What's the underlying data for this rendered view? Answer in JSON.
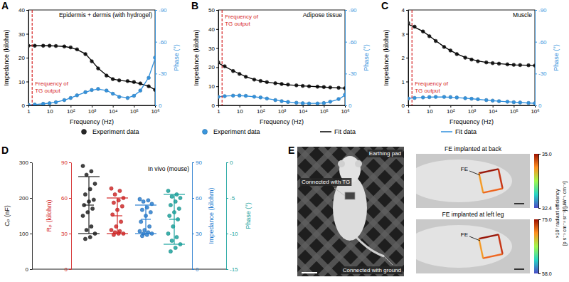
{
  "chart_data": [
    {
      "panel": "A",
      "type": "line",
      "title": "Epidermis + dermis (with hydrogel)",
      "xlabel": "Frequency (Hz)",
      "ylabel": "Impedance (kilohm)",
      "y2label": "Phase (°)",
      "log": "x",
      "x": [
        1,
        2,
        5,
        10,
        20,
        50,
        100,
        200,
        500,
        1000,
        2000,
        5000,
        10000,
        20000,
        50000,
        100000,
        200000,
        500000,
        1000000
      ],
      "xlim": [
        1,
        1000000
      ],
      "xticks": [
        1,
        10,
        {
          "value": 100,
          "label": "10²"
        },
        {
          "value": 1000,
          "label": "10³"
        },
        {
          "value": 10000,
          "label": "10⁴"
        },
        {
          "value": 100000,
          "label": "10⁵"
        },
        {
          "value": 1000000,
          "label": "10⁶"
        }
      ],
      "ylim": [
        0,
        40
      ],
      "yticks": [
        0,
        10,
        20,
        30,
        40
      ],
      "y2lim": [
        0,
        -90
      ],
      "y2ticks": [
        0,
        -30,
        -60,
        -90
      ],
      "annotations": [
        {
          "text": "Frequency of TG output",
          "x": 1.5
        }
      ],
      "series": [
        {
          "name": "Experiment data",
          "type": "scatter",
          "marker": "circle",
          "color": "#262626",
          "values": [
            25,
            25,
            25,
            25,
            24.9,
            24.7,
            24.3,
            23.5,
            21.5,
            18.5,
            15.5,
            12.5,
            11,
            10.5,
            10.2,
            9.8,
            9.2,
            8,
            6.5
          ]
        },
        {
          "name": "Experiment data",
          "type": "scatter",
          "marker": "circle",
          "color": "#3a96dd",
          "axis": "y2",
          "values": [
            -0.5,
            -0.8,
            -1.5,
            -2,
            -3,
            -5,
            -7,
            -9.5,
            -12.5,
            -14.5,
            -15.5,
            -14,
            -11,
            -8,
            -7,
            -9,
            -14,
            -26,
            -45
          ]
        },
        {
          "name": "Fit data",
          "type": "line",
          "color": "#000000",
          "values": [
            25,
            25,
            25,
            25,
            24.9,
            24.7,
            24.2,
            23.4,
            21.6,
            18.7,
            15.6,
            12.6,
            11.1,
            10.5,
            10.1,
            9.7,
            9.1,
            8.0,
            6.6
          ]
        },
        {
          "name": "Fit data",
          "type": "line",
          "color": "#2f8fdc",
          "axis": "y2",
          "values": [
            -0.4,
            -0.8,
            -1.5,
            -2.1,
            -3.1,
            -5,
            -7,
            -9.5,
            -12.3,
            -14.3,
            -15.3,
            -14.1,
            -11.2,
            -8.3,
            -7.2,
            -9.2,
            -13.8,
            -26.5,
            -44
          ]
        }
      ]
    },
    {
      "panel": "B",
      "type": "line",
      "title": "Adipose tissue",
      "xlabel": "Frequency (Hz)",
      "ylabel": "Impedance (kilohm)",
      "y2label": "Phase (°)",
      "log": "x",
      "x": [
        1,
        2,
        5,
        10,
        20,
        50,
        100,
        200,
        500,
        1000,
        2000,
        5000,
        10000,
        20000,
        50000,
        100000,
        200000,
        500000,
        1000000
      ],
      "xlim": [
        1,
        1000000
      ],
      "xticks": [
        1,
        10,
        {
          "value": 100,
          "label": "10²"
        },
        {
          "value": 1000,
          "label": "10³"
        },
        {
          "value": 10000,
          "label": "10⁴"
        },
        {
          "value": 100000,
          "label": "10⁵"
        },
        {
          "value": 1000000,
          "label": "10⁶"
        }
      ],
      "ylim": [
        0,
        50
      ],
      "yticks": [
        0,
        10,
        20,
        30,
        40,
        50
      ],
      "y2lim": [
        0,
        -90
      ],
      "y2ticks": [
        0,
        -30,
        -60,
        -90
      ],
      "annotations": [
        {
          "text": "Frequency of TG output",
          "x": 1.5
        }
      ],
      "series": [
        {
          "type": "scatter",
          "marker": "circle",
          "color": "#262626",
          "values": [
            22.5,
            20.5,
            18,
            16.5,
            15,
            13.5,
            12.8,
            12.2,
            11.6,
            11.2,
            10.9,
            10.5,
            10.2,
            10,
            9.8,
            9.6,
            9.4,
            9.2,
            9.0
          ]
        },
        {
          "type": "scatter",
          "marker": "circle",
          "color": "#3a96dd",
          "axis": "y2",
          "values": [
            -8,
            -8.7,
            -9.2,
            -9.3,
            -9,
            -8.2,
            -7.5,
            -6.5,
            -5,
            -4,
            -3.2,
            -2.5,
            -2,
            -1.8,
            -1.8,
            -2.2,
            -3.5,
            -6,
            -10
          ]
        },
        {
          "type": "line",
          "color": "#000000",
          "values": [
            22.2,
            20.4,
            18.1,
            16.6,
            15.1,
            13.6,
            12.8,
            12.2,
            11.6,
            11.2,
            10.8,
            10.5,
            10.2,
            10.0,
            9.8,
            9.6,
            9.4,
            9.2,
            9.0
          ]
        },
        {
          "type": "line",
          "color": "#2f8fdc",
          "axis": "y2",
          "values": [
            -8.2,
            -8.8,
            -9.2,
            -9.2,
            -8.9,
            -8.1,
            -7.4,
            -6.4,
            -5.1,
            -4.1,
            -3.3,
            -2.5,
            -2.1,
            -1.9,
            -1.9,
            -2.3,
            -3.4,
            -5.8,
            -9.6
          ]
        }
      ]
    },
    {
      "panel": "C",
      "type": "line",
      "title": "Muscle",
      "xlabel": "Frequency (Hz)",
      "ylabel": "Impedance (kilohm)",
      "y2label": "Phase (°)",
      "log": "x",
      "x": [
        1,
        2,
        5,
        10,
        20,
        50,
        100,
        200,
        500,
        1000,
        2000,
        5000,
        10000,
        20000,
        50000,
        100000,
        200000,
        500000,
        1000000
      ],
      "xlim": [
        1,
        1000000
      ],
      "xticks": [
        1,
        10,
        {
          "value": 100,
          "label": "10²"
        },
        {
          "value": 1000,
          "label": "10³"
        },
        {
          "value": 10000,
          "label": "10⁴"
        },
        {
          "value": 100000,
          "label": "10⁵"
        },
        {
          "value": 1000000,
          "label": "10⁶"
        }
      ],
      "ylim": [
        0,
        4
      ],
      "yticks": [
        0,
        1,
        2,
        3,
        4
      ],
      "y2lim": [
        0,
        -90
      ],
      "y2ticks": [
        0,
        -30,
        -60,
        -90
      ],
      "annotations": [
        {
          "text": "Frequency of TG output",
          "x": 1.5
        }
      ],
      "series": [
        {
          "type": "scatter",
          "marker": "circle",
          "color": "#262626",
          "values": [
            3.45,
            3.3,
            3.1,
            2.9,
            2.7,
            2.45,
            2.3,
            2.15,
            2.0,
            1.92,
            1.85,
            1.8,
            1.77,
            1.75,
            1.72,
            1.7,
            1.69,
            1.68,
            1.67
          ]
        },
        {
          "type": "scatter",
          "marker": "circle",
          "color": "#3a96dd",
          "axis": "y2",
          "values": [
            -6.5,
            -7,
            -7.5,
            -7.8,
            -8,
            -8,
            -7.8,
            -7.4,
            -6.8,
            -6.3,
            -5.8,
            -5,
            -4.5,
            -4,
            -3.5,
            -3,
            -2.7,
            -2.3,
            -2
          ]
        },
        {
          "type": "line",
          "color": "#000000",
          "values": [
            3.4,
            3.28,
            3.1,
            2.91,
            2.71,
            2.46,
            2.3,
            2.16,
            2.01,
            1.93,
            1.86,
            1.8,
            1.77,
            1.75,
            1.72,
            1.7,
            1.69,
            1.68,
            1.67
          ]
        },
        {
          "type": "line",
          "color": "#2f8fdc",
          "axis": "y2",
          "values": [
            -6.6,
            -7.1,
            -7.5,
            -7.8,
            -7.9,
            -7.9,
            -7.7,
            -7.3,
            -6.8,
            -6.3,
            -5.7,
            -5,
            -4.5,
            -4,
            -3.5,
            -3.1,
            -2.7,
            -2.3,
            -2
          ]
        }
      ]
    },
    {
      "panel": "D",
      "type": "strip",
      "ylabel": "Cₚ (nF)",
      "ylim": [
        0,
        300
      ],
      "yticks": [
        0,
        100,
        200,
        300
      ],
      "color": "#222222",
      "values": [
        290,
        275,
        265,
        240,
        225,
        210,
        195,
        190,
        180,
        170,
        160,
        150,
        120,
        110,
        100,
        90,
        85
      ],
      "mean": 180,
      "sd": 80,
      "annotations": [
        {
          "text": "In vivo (mouse)"
        }
      ]
    },
    {
      "panel": "D",
      "type": "strip",
      "ylabel": "Rₚ (kilohm)",
      "ylim": [
        0,
        90
      ],
      "yticks": [
        0,
        30,
        60,
        90
      ],
      "color": "#d42a2a",
      "values": [
        68,
        66,
        63,
        60,
        58,
        56,
        53,
        50,
        46,
        40,
        36,
        33,
        32,
        31,
        30,
        30,
        29
      ],
      "mean": 45,
      "sd": 15
    },
    {
      "panel": "D",
      "type": "strip",
      "ylabel": "Impedance (kilohm)",
      "ylim": [
        0,
        90
      ],
      "yticks": [
        0,
        30,
        60,
        90
      ],
      "color": "#2b7fd0",
      "values": [
        59,
        58,
        57,
        55,
        52,
        50,
        48,
        45,
        40,
        36,
        33,
        32,
        31,
        30,
        30,
        29,
        28
      ],
      "mean": 42,
      "sd": 12
    },
    {
      "panel": "D",
      "type": "strip",
      "ylabel": "Phase (°)",
      "ylim": [
        -15,
        0
      ],
      "yticks": [
        0,
        -5,
        -10,
        -15
      ],
      "color": "#1aa39e",
      "values": [
        -4,
        -4.5,
        -4.8,
        -5,
        -5.5,
        -6,
        -6.5,
        -7,
        -7.5,
        -8,
        -9,
        -10,
        -10.5,
        -11,
        -11.5,
        -12,
        -12.5
      ],
      "mean": -8,
      "sd": 3.5
    }
  ],
  "photo_panel": {
    "panel": "E",
    "labels": {
      "pad": "Earthing pad",
      "tg": "Connected with TG",
      "ground": "Connected with ground"
    },
    "insets": [
      {
        "title": "FE implanted at back",
        "label": "FE",
        "colorbar": {
          "lim": [
            32.4,
            35.0
          ],
          "ticks": [
            32.4,
            {
              "value": 35,
              "label": "35.0"
            }
          ]
        }
      },
      {
        "title": "FE implanted at left leg",
        "label": "FE",
        "colorbar": {
          "lim": [
            58,
            75
          ],
          "ticks": [
            {
              "value": 58,
              "label": "58.0"
            },
            {
              "value": 75,
              "label": "75.0"
            }
          ]
        }
      }
    ],
    "colorbar_title": [
      "×10⁷ radiant efficiency",
      "[p s⁻¹ cm⁻² sr⁻¹]/[µW⁻¹ cm⁻²]"
    ]
  }
}
